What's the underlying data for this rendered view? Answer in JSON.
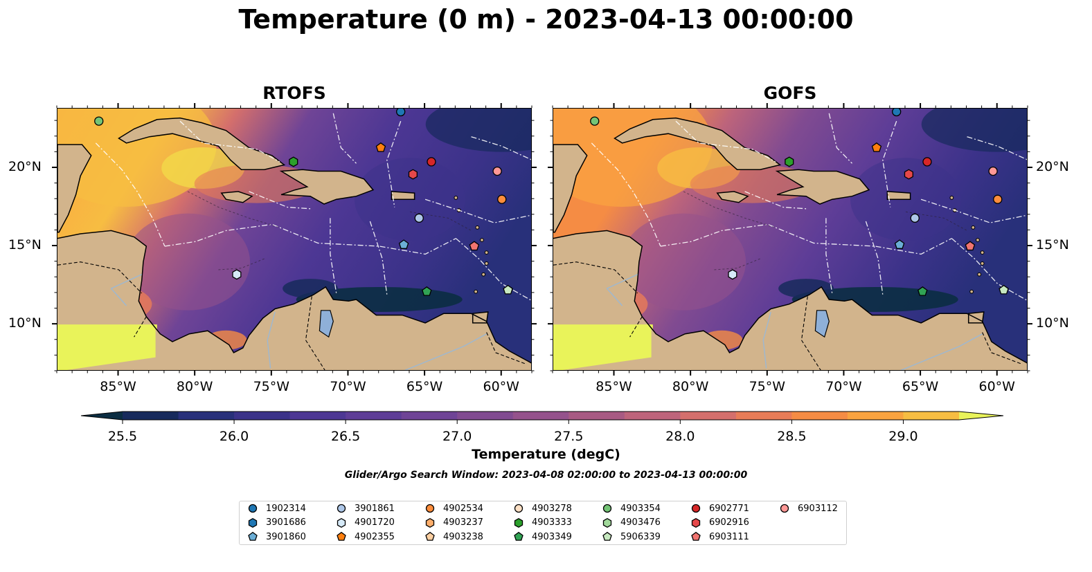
{
  "title": "Temperature (0 m) - 2023-04-13 00:00:00",
  "panels": [
    {
      "title": "RTOFS"
    },
    {
      "title": "GOFS"
    }
  ],
  "lon_labels": [
    "85°W",
    "80°W",
    "75°W",
    "70°W",
    "65°W",
    "60°W"
  ],
  "lat_labels": [
    "20°N",
    "15°N",
    "10°N"
  ],
  "colorbar": {
    "label": "Temperature (degC)",
    "ticks": [
      "25.5",
      "26.0",
      "26.5",
      "27.0",
      "27.5",
      "28.0",
      "28.5",
      "29.0"
    ],
    "colors": [
      "#0b2d42",
      "#172a5c",
      "#28307a",
      "#3b3289",
      "#4d3794",
      "#5e3d97",
      "#6f4496",
      "#814b91",
      "#95528c",
      "#a85a83",
      "#bd647b",
      "#d46f6c",
      "#e87c57",
      "#f58c44",
      "#f9a340",
      "#f7bd42",
      "#f2d949",
      "#e9f35a"
    ]
  },
  "search_window": "Glider/Argo Search Window: 2023-04-08 02:00:00 to 2023-04-13 00:00:00",
  "legend": [
    {
      "id": "1902314",
      "marker": "circle",
      "color": "#1f77b4"
    },
    {
      "id": "3901686",
      "marker": "hexagon",
      "color": "#1f77b4"
    },
    {
      "id": "3901860",
      "marker": "pentagon",
      "color": "#6baed6"
    },
    {
      "id": "3901861",
      "marker": "circle",
      "color": "#aec7e8"
    },
    {
      "id": "4901720",
      "marker": "hexagon",
      "color": "#d6eaf8"
    },
    {
      "id": "4902355",
      "marker": "pentagon",
      "color": "#ff7f0e"
    },
    {
      "id": "4902534",
      "marker": "circle",
      "color": "#fd8d3c"
    },
    {
      "id": "4903237",
      "marker": "hexagon",
      "color": "#fdae6b"
    },
    {
      "id": "4903238",
      "marker": "pentagon",
      "color": "#fdd0a2"
    },
    {
      "id": "4903278",
      "marker": "circle",
      "color": "#fde0c5"
    },
    {
      "id": "4903333",
      "marker": "hexagon",
      "color": "#2ca02c"
    },
    {
      "id": "4903349",
      "marker": "pentagon",
      "color": "#31a354"
    },
    {
      "id": "4903354",
      "marker": "circle",
      "color": "#74c476"
    },
    {
      "id": "4903476",
      "marker": "hexagon",
      "color": "#a1d99b"
    },
    {
      "id": "5906339",
      "marker": "pentagon",
      "color": "#c7e9c0"
    },
    {
      "id": "6902771",
      "marker": "circle",
      "color": "#d62728"
    },
    {
      "id": "6902916",
      "marker": "hexagon",
      "color": "#e6484a"
    },
    {
      "id": "6903111",
      "marker": "pentagon",
      "color": "#f07470"
    },
    {
      "id": "6903112",
      "marker": "circle",
      "color": "#ff9896"
    }
  ],
  "floats_on_map": [
    {
      "id": "4903354",
      "lon": -86.3,
      "lat": 23.0
    },
    {
      "id": "1902314",
      "lon": -66.6,
      "lat": 23.6
    },
    {
      "id": "4902355",
      "lon": -67.9,
      "lat": 21.3
    },
    {
      "id": "4903333",
      "lon": -73.6,
      "lat": 20.4
    },
    {
      "id": "6902771",
      "lon": -64.6,
      "lat": 20.4
    },
    {
      "id": "6902916",
      "lon": -65.8,
      "lat": 19.6
    },
    {
      "id": "6903112",
      "lon": -60.3,
      "lat": 19.8
    },
    {
      "id": "4902534",
      "lon": -60.0,
      "lat": 18.0
    },
    {
      "id": "3901861",
      "lon": -65.4,
      "lat": 16.8
    },
    {
      "id": "3901860",
      "lon": -66.4,
      "lat": 15.1
    },
    {
      "id": "6903111",
      "lon": -61.8,
      "lat": 15.0
    },
    {
      "id": "4901720",
      "lon": -77.3,
      "lat": 13.2
    },
    {
      "id": "4903349",
      "lon": -64.9,
      "lat": 12.1
    },
    {
      "id": "5906339",
      "lon": -59.6,
      "lat": 12.2
    }
  ],
  "map_colors": {
    "land": "#d2b48c",
    "lake": "#8fb0d8",
    "contour": "#ffffff"
  }
}
